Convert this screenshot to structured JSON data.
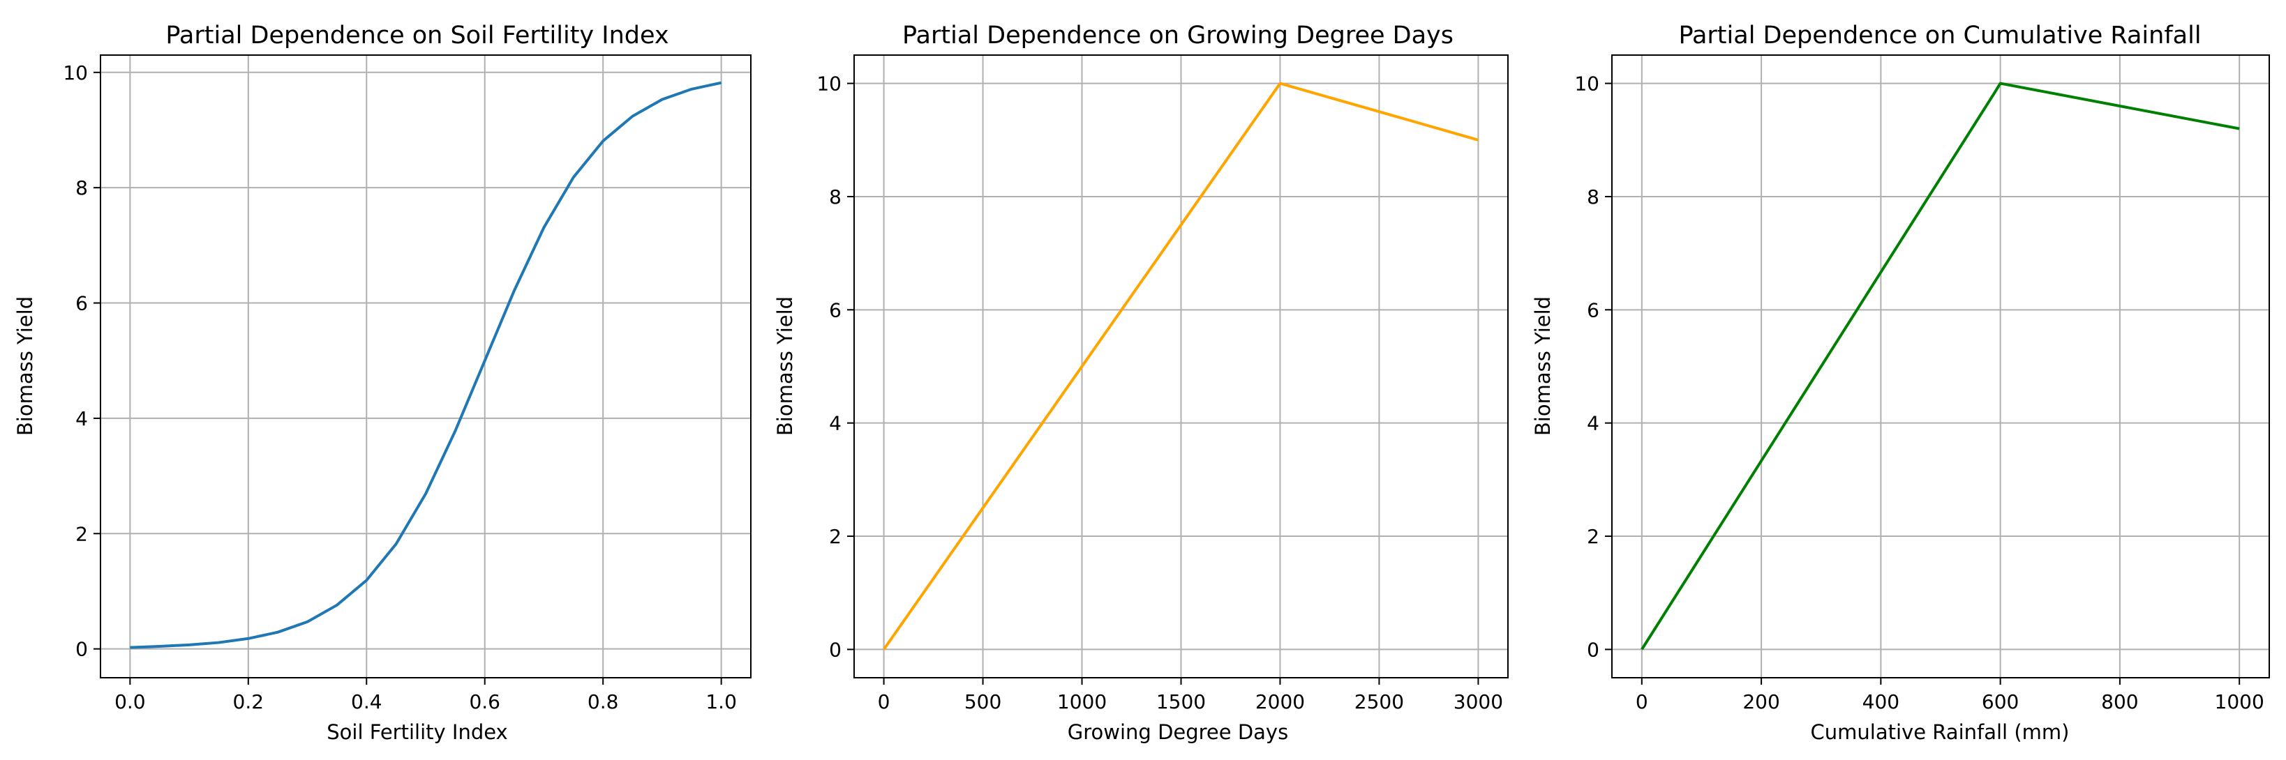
{
  "chart_data": [
    {
      "type": "line",
      "title": "Partial Dependence on Soil Fertility Index",
      "xlabel": "Soil Fertility Index",
      "ylabel": "Biomass Yield",
      "xlim": [
        -0.05,
        1.05
      ],
      "ylim": [
        -0.5,
        10.3
      ],
      "xticks": [
        0.0,
        0.2,
        0.4,
        0.6,
        0.8,
        1.0
      ],
      "xtick_labels": [
        "0.0",
        "0.2",
        "0.4",
        "0.6",
        "0.8",
        "1.0"
      ],
      "yticks": [
        0,
        2,
        4,
        6,
        8,
        10
      ],
      "ytick_labels": [
        "0",
        "2",
        "4",
        "6",
        "8",
        "10"
      ],
      "grid": true,
      "color": "#1f77b4",
      "series": [
        {
          "name": "Soil Fertility Index",
          "x": [
            0.0,
            0.05,
            0.1,
            0.15,
            0.2,
            0.25,
            0.3,
            0.35,
            0.4,
            0.45,
            0.5,
            0.55,
            0.6,
            0.65,
            0.7,
            0.75,
            0.8,
            0.85,
            0.9,
            0.95,
            1.0
          ],
          "y": [
            0.025,
            0.045,
            0.07,
            0.11,
            0.18,
            0.29,
            0.47,
            0.76,
            1.19,
            1.82,
            2.69,
            3.78,
            5.0,
            6.22,
            7.31,
            8.18,
            8.81,
            9.24,
            9.53,
            9.71,
            9.82
          ]
        }
      ]
    },
    {
      "type": "line",
      "title": "Partial Dependence on Growing Degree Days",
      "xlabel": "Growing Degree Days",
      "ylabel": "Biomass Yield",
      "xlim": [
        -150,
        3150
      ],
      "ylim": [
        -0.5,
        10.5
      ],
      "xticks": [
        0,
        500,
        1000,
        1500,
        2000,
        2500,
        3000
      ],
      "xtick_labels": [
        "0",
        "500",
        "1000",
        "1500",
        "2000",
        "2500",
        "3000"
      ],
      "yticks": [
        0,
        2,
        4,
        6,
        8,
        10
      ],
      "ytick_labels": [
        "0",
        "2",
        "4",
        "6",
        "8",
        "10"
      ],
      "grid": true,
      "color": "#ffa500",
      "series": [
        {
          "name": "Growing Degree Days",
          "x": [
            0,
            2000,
            3000
          ],
          "y": [
            0,
            10,
            9
          ]
        }
      ]
    },
    {
      "type": "line",
      "title": "Partial Dependence on Cumulative Rainfall",
      "xlabel": "Cumulative Rainfall (mm)",
      "ylabel": "Biomass Yield",
      "xlim": [
        -50,
        1050
      ],
      "ylim": [
        -0.5,
        10.5
      ],
      "xticks": [
        0,
        200,
        400,
        600,
        800,
        1000
      ],
      "xtick_labels": [
        "0",
        "200",
        "400",
        "600",
        "800",
        "1000"
      ],
      "yticks": [
        0,
        2,
        4,
        6,
        8,
        10
      ],
      "ytick_labels": [
        "0",
        "2",
        "4",
        "6",
        "8",
        "10"
      ],
      "grid": true,
      "color": "#008000",
      "series": [
        {
          "name": "Cumulative Rainfall",
          "x": [
            0,
            590,
            600,
            610,
            1000
          ],
          "y": [
            0,
            9.83,
            10,
            9.98,
            9.2
          ]
        }
      ]
    }
  ]
}
